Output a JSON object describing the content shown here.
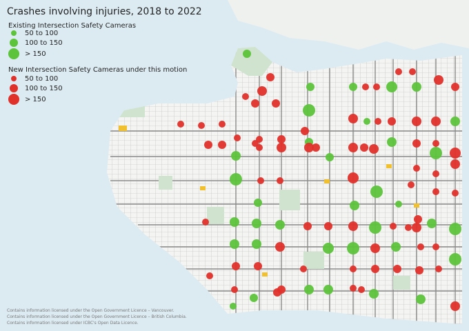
{
  "title": "Crashes involving injuries, 2018 to 2022",
  "legend": {
    "existing": {
      "title": "Existing Intersection Safety Cameras",
      "items": [
        "50 to 100",
        "100 to 150",
        "> 150"
      ]
    },
    "new": {
      "title": "New Intersection Safety Cameras under this motion",
      "items": [
        "50 to 100",
        "100 to 150",
        "> 150"
      ]
    }
  },
  "credits": [
    "Contains information licensed under the Open Government Licence – Vancouver.",
    "Contains information licensed under the Open Government Licence – British Columbia.",
    "Contains information licensed under ICBC's Open Data Licence."
  ]
}
